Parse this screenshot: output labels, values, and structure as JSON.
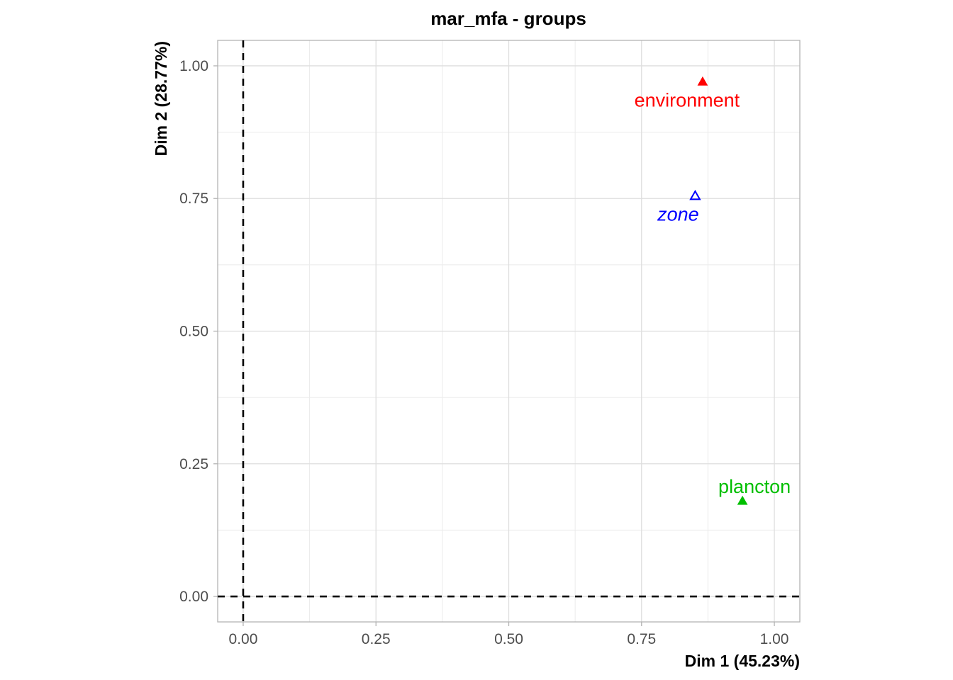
{
  "chart_data": {
    "type": "scatter",
    "title": "mar_mfa - groups",
    "xlabel": "Dim 1 (45.23%)",
    "ylabel": "Dim 2 (28.77%)",
    "xlim": [
      -0.048,
      1.048
    ],
    "ylim": [
      -0.048,
      1.048
    ],
    "x_ticks": [
      0.0,
      0.25,
      0.5,
      0.75,
      1.0
    ],
    "x_tick_labels": [
      "0.00",
      "0.25",
      "0.50",
      "0.75",
      "1.00"
    ],
    "y_ticks": [
      0.0,
      0.25,
      0.5,
      0.75,
      1.0
    ],
    "y_tick_labels": [
      "0.00",
      "0.25",
      "0.50",
      "0.75",
      "1.00"
    ],
    "grid": true,
    "reference_lines": {
      "x": 0,
      "y": 0,
      "style": "dashed"
    },
    "points": [
      {
        "label": "environment",
        "x": 0.865,
        "y": 0.97,
        "color": "#ff0000",
        "marker": "triangle-filled",
        "italic": false,
        "label_position": "below"
      },
      {
        "label": "zone",
        "x": 0.851,
        "y": 0.755,
        "color": "#0000ff",
        "marker": "triangle-open",
        "italic": true,
        "label_position": "below-left"
      },
      {
        "label": "plancton",
        "x": 0.94,
        "y": 0.18,
        "color": "#00bf00",
        "marker": "triangle-filled",
        "italic": false,
        "label_position": "above"
      }
    ]
  }
}
